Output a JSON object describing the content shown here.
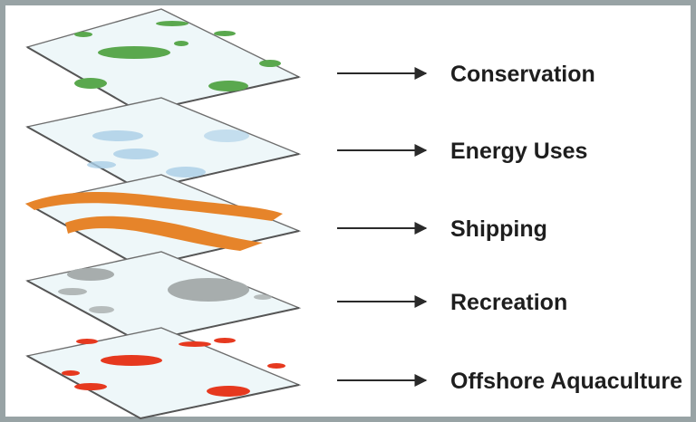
{
  "diagram": {
    "layers": [
      {
        "label": "Conservation",
        "color": "#5aa84e"
      },
      {
        "label": "Energy Uses",
        "color": "#a9cde6"
      },
      {
        "label": "Shipping",
        "color": "#e6842a"
      },
      {
        "label": "Recreation",
        "color": "#a7adad"
      },
      {
        "label": "Offshore Aquaculture",
        "color": "#e6391f"
      }
    ],
    "colors": {
      "frame": "#98a3a5",
      "plane_fill": "#eef7f9",
      "plane_edge": "#6e6e6e",
      "arrow": "#2a2a2a",
      "text": "#1e1e1e"
    }
  }
}
